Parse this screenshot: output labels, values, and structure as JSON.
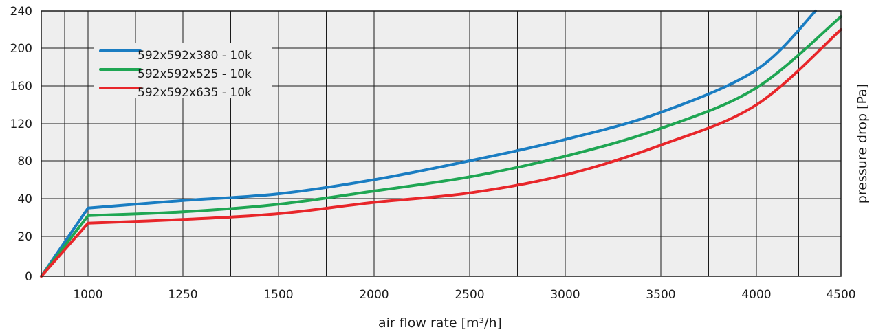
{
  "chart_data": {
    "type": "line",
    "title": "",
    "xlabel": "air flow rate [m³/h]",
    "ylabel": "pressure drop [Pa]",
    "x_tick_labels": [
      "1000",
      "1250",
      "1500",
      "2000",
      "2500",
      "3000",
      "3500",
      "4000",
      "4500"
    ],
    "y_ticks": [
      0,
      20,
      40,
      80,
      120,
      160,
      200,
      240
    ],
    "grid": true,
    "legend_position": "top-left",
    "colors": {
      "background": "#eeeeee",
      "grid": "#1a1a1a",
      "text": "#1a1a1a"
    },
    "series": [
      {
        "name": "592x592x380 - 10k",
        "color": "#1a7dc2",
        "points": [
          [
            750,
            0
          ],
          [
            1000,
            35
          ],
          [
            1250,
            39
          ],
          [
            1500,
            45
          ],
          [
            2000,
            60
          ],
          [
            2500,
            80
          ],
          [
            3000,
            103
          ],
          [
            3500,
            132
          ],
          [
            4000,
            177
          ],
          [
            4350,
            240
          ]
        ]
      },
      {
        "name": "592x592x525 - 10k",
        "color": "#1fa653",
        "points": [
          [
            750,
            0
          ],
          [
            1000,
            31
          ],
          [
            1250,
            33
          ],
          [
            1500,
            37
          ],
          [
            2000,
            48
          ],
          [
            2500,
            63
          ],
          [
            3000,
            85
          ],
          [
            3500,
            115
          ],
          [
            4000,
            158
          ],
          [
            4500,
            234
          ]
        ]
      },
      {
        "name": "592x592x635 - 10k",
        "color": "#e8262a",
        "points": [
          [
            750,
            0
          ],
          [
            1000,
            27
          ],
          [
            1250,
            29
          ],
          [
            1500,
            32
          ],
          [
            2000,
            38
          ],
          [
            2500,
            46
          ],
          [
            3000,
            65
          ],
          [
            3500,
            97
          ],
          [
            4000,
            140
          ],
          [
            4500,
            220
          ]
        ]
      }
    ]
  }
}
